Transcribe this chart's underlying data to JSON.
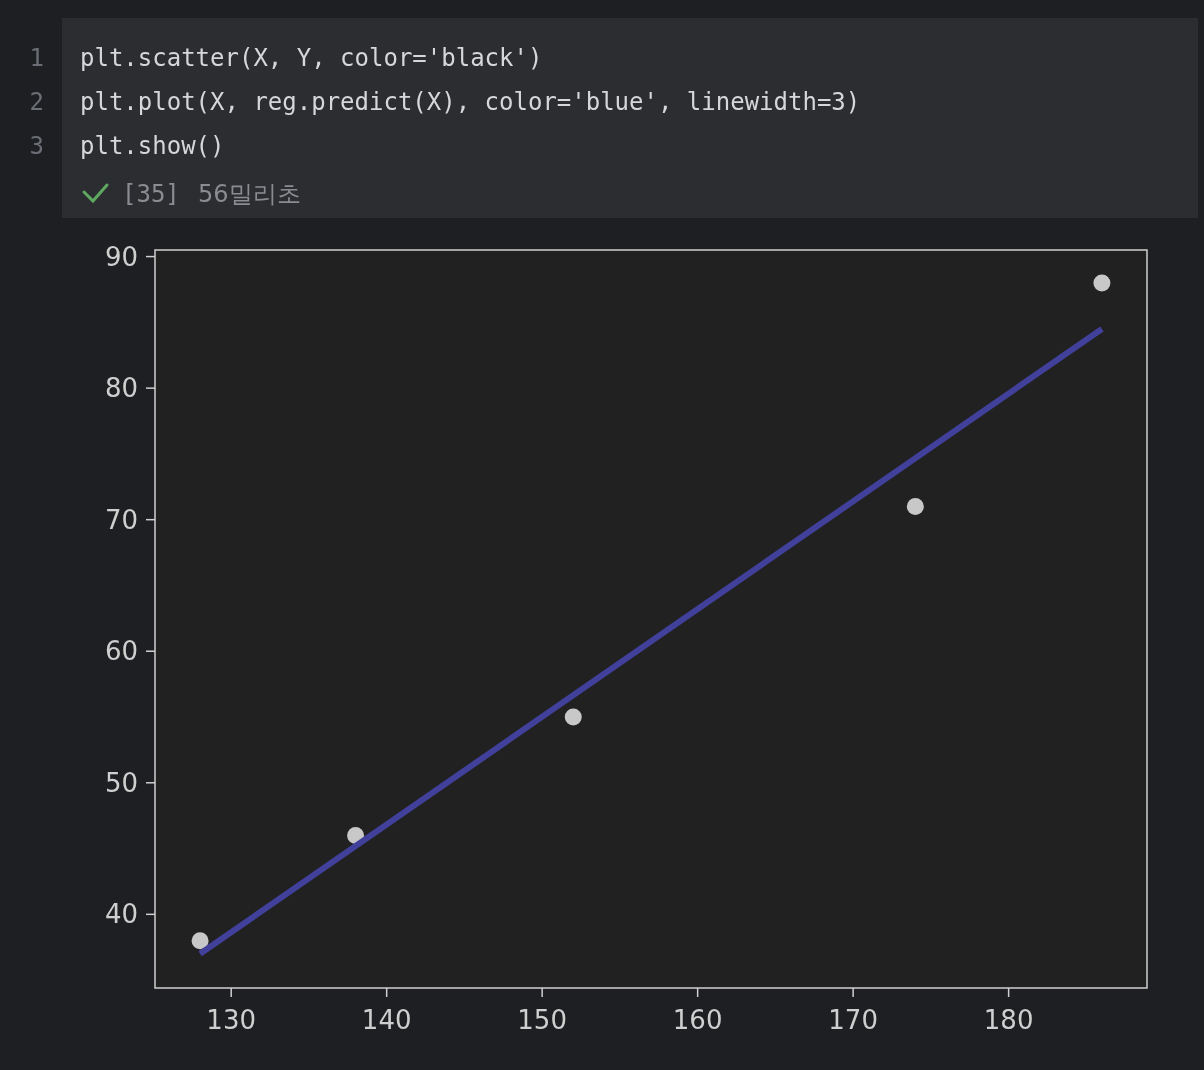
{
  "chart_data": {
    "type": "scatter",
    "x": [
      128,
      138,
      152,
      174,
      186
    ],
    "series": [
      {
        "color": "#c8c8c8",
        "marker": "circle",
        "values": [
          38,
          46,
          55,
          71,
          88
        ]
      },
      {
        "type": "line",
        "color": "#41419c",
        "marker": "none",
        "line_style": "solid",
        "x": [
          128,
          186
        ],
        "values": [
          37.0,
          84.5
        ]
      }
    ],
    "xlim": [
      125.1,
      188.9
    ],
    "ylim": [
      34.4,
      90.5
    ],
    "xticks": [
      130,
      140,
      150,
      160,
      170,
      180
    ],
    "yticks": [
      40,
      50,
      60,
      70,
      80,
      90
    ],
    "grid": false,
    "annotations": [
      "1",
      "plt.scatter(X, Y, color='black')",
      "2",
      "plt.plot(X, reg.predict(X), color='blue', linewidth=3)",
      "3",
      "plt.show()",
      "[35]",
      "56밀리초"
    ]
  }
}
